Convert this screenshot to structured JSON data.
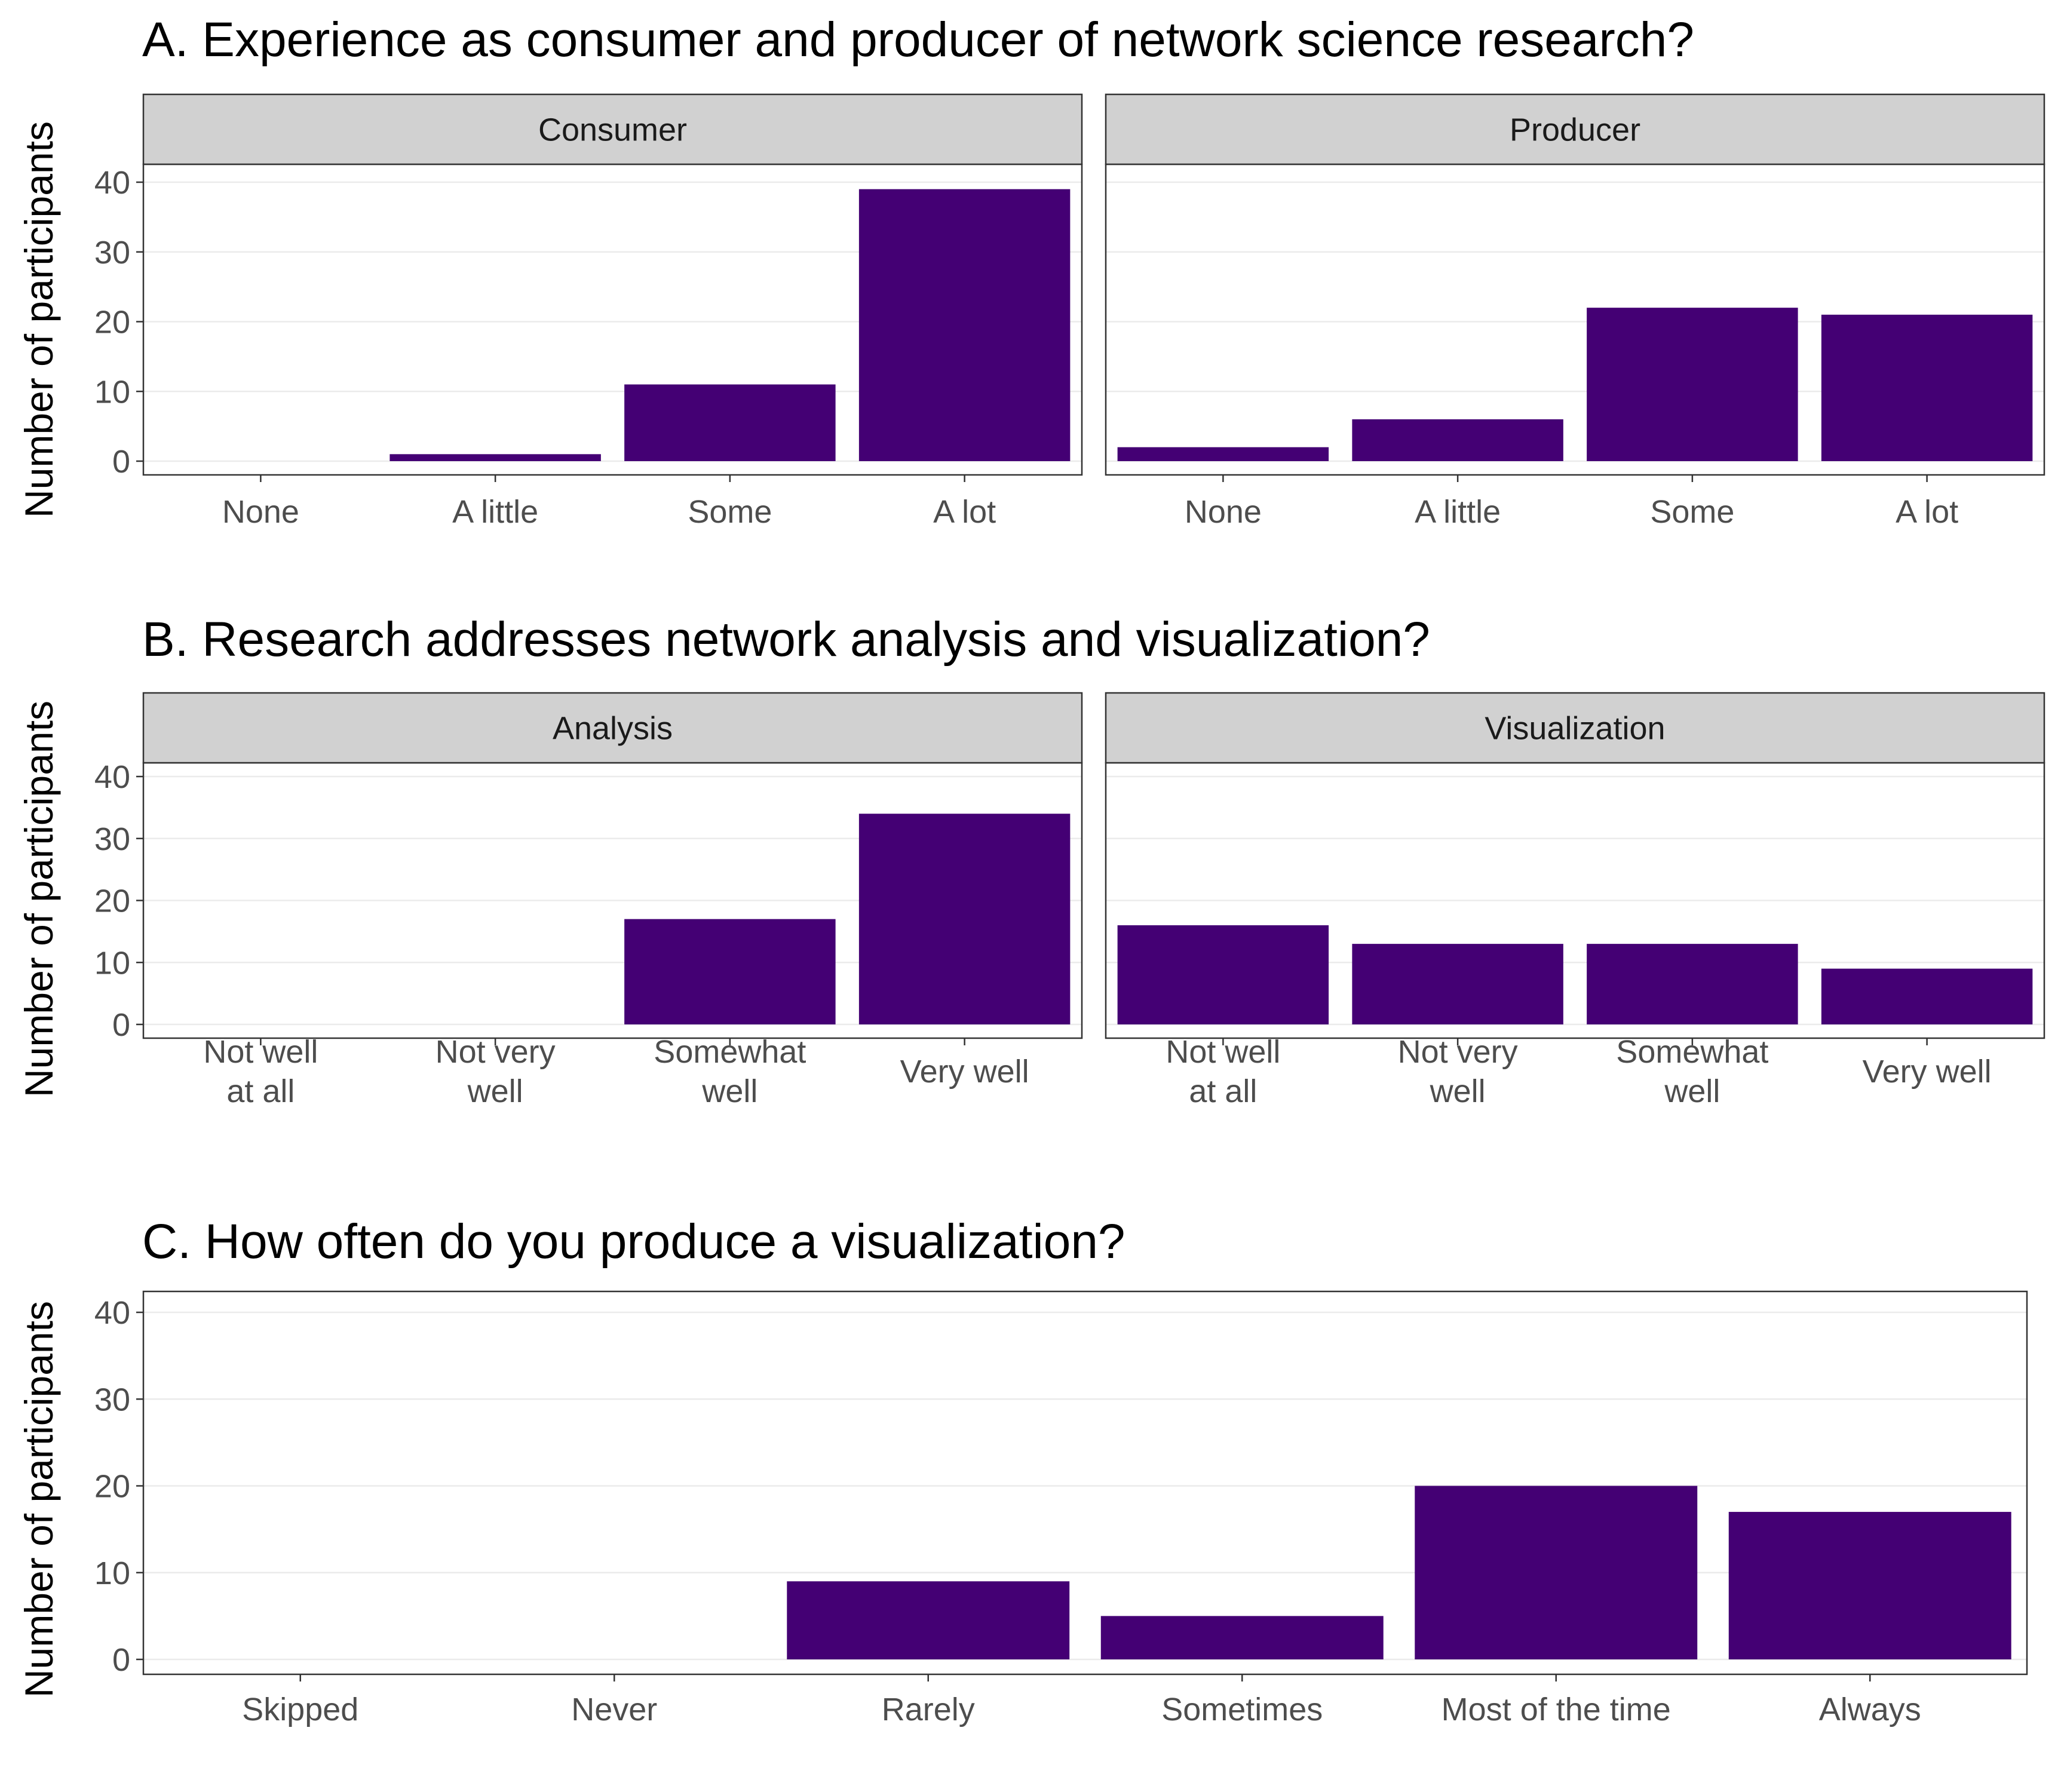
{
  "colors": {
    "bar": "#440074"
  },
  "chart_data": [
    {
      "type": "bar",
      "id": "A",
      "title": "A. Experience as consumer and producer of network science research?",
      "ylabel": "Number of participants",
      "xlabel": "",
      "ylim": [
        0,
        42
      ],
      "yticks": [
        0,
        10,
        20,
        30,
        40
      ],
      "grid": true,
      "categories": [
        [
          "None"
        ],
        [
          "A little"
        ],
        [
          "Some"
        ],
        [
          "A lot"
        ]
      ],
      "facets": [
        {
          "label": "Consumer",
          "values": [
            0,
            1,
            11,
            39
          ]
        },
        {
          "label": "Producer",
          "values": [
            2,
            6,
            22,
            21
          ]
        }
      ]
    },
    {
      "type": "bar",
      "id": "B",
      "title": "B. Research addresses network analysis and visualization?",
      "ylabel": "Number of participants",
      "xlabel": "",
      "ylim": [
        0,
        42
      ],
      "yticks": [
        0,
        10,
        20,
        30,
        40
      ],
      "grid": true,
      "categories": [
        [
          "Not well",
          "at all"
        ],
        [
          "Not very",
          "well"
        ],
        [
          "Somewhat",
          "well"
        ],
        [
          "Very well"
        ]
      ],
      "facets": [
        {
          "label": "Analysis",
          "values": [
            0,
            0,
            17,
            34
          ]
        },
        {
          "label": "Visualization",
          "values": [
            16,
            13,
            13,
            9
          ]
        }
      ]
    },
    {
      "type": "bar",
      "id": "C",
      "title": "C. How often do you produce a visualization?",
      "ylabel": "Number of participants",
      "xlabel": "",
      "ylim": [
        0,
        42
      ],
      "yticks": [
        0,
        10,
        20,
        30,
        40
      ],
      "grid": true,
      "categories": [
        [
          "Skipped"
        ],
        [
          "Never"
        ],
        [
          "Rarely"
        ],
        [
          "Sometimes"
        ],
        [
          "Most of the time"
        ],
        [
          "Always"
        ]
      ],
      "facets": [
        {
          "label": "",
          "values": [
            0,
            0,
            9,
            5,
            20,
            17
          ]
        }
      ]
    }
  ]
}
